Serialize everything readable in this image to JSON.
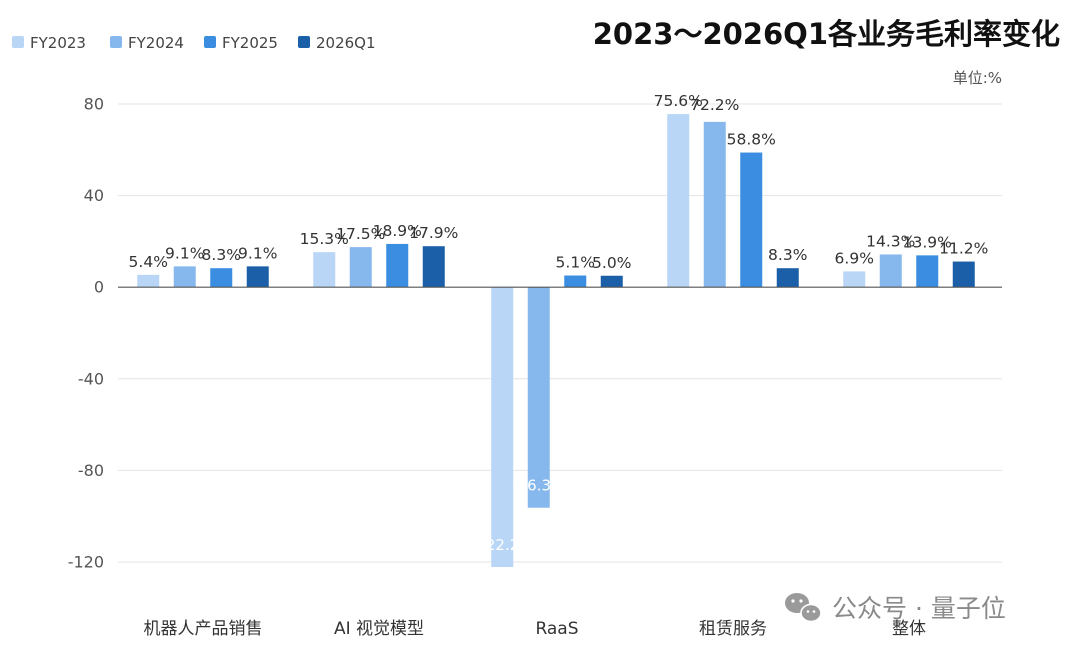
{
  "title": "2023～2026Q1各业务毛利率变化",
  "unit_label": "单位:%",
  "watermark": {
    "text": "公众号 · 量子位",
    "icon": "wechat-icon"
  },
  "chart_data": {
    "type": "bar",
    "title": "2023～2026Q1各业务毛利率变化",
    "ylabel": "单位:%",
    "xlabel": "",
    "categories": [
      "机器人产品销售",
      "AI 视觉模型",
      "RaaS",
      "租赁服务",
      "整体"
    ],
    "series": [
      {
        "name": "FY2023",
        "color": "#b9d6f6",
        "values": [
          5.4,
          15.3,
          -122.2,
          75.6,
          6.9
        ],
        "labels": [
          "5.4%",
          "15.3%",
          "-122.2%",
          "75.6%",
          "6.9%"
        ]
      },
      {
        "name": "FY2024",
        "color": "#86b8ed",
        "values": [
          9.1,
          17.5,
          -96.3,
          72.2,
          14.3
        ],
        "labels": [
          "9.1%",
          "17.5%",
          "-96.3%",
          "72.2%",
          "14.3%"
        ]
      },
      {
        "name": "FY2025",
        "color": "#3a8de0",
        "values": [
          8.3,
          18.9,
          5.1,
          58.8,
          13.9
        ],
        "labels": [
          "8.3%",
          "18.9%",
          "5.1%",
          "58.8%",
          "13.9%"
        ]
      },
      {
        "name": "2026Q1",
        "color": "#1a5fa8",
        "values": [
          9.1,
          17.9,
          5.0,
          8.3,
          11.2
        ],
        "labels": [
          "9.1%",
          "17.9%",
          "5.0%",
          "8.3%",
          "11.2%"
        ]
      }
    ],
    "ylim": [
      -120,
      80
    ],
    "yticks": [
      80,
      40,
      0,
      -40,
      -80,
      -120
    ],
    "grid": true,
    "legend": "top-left"
  }
}
